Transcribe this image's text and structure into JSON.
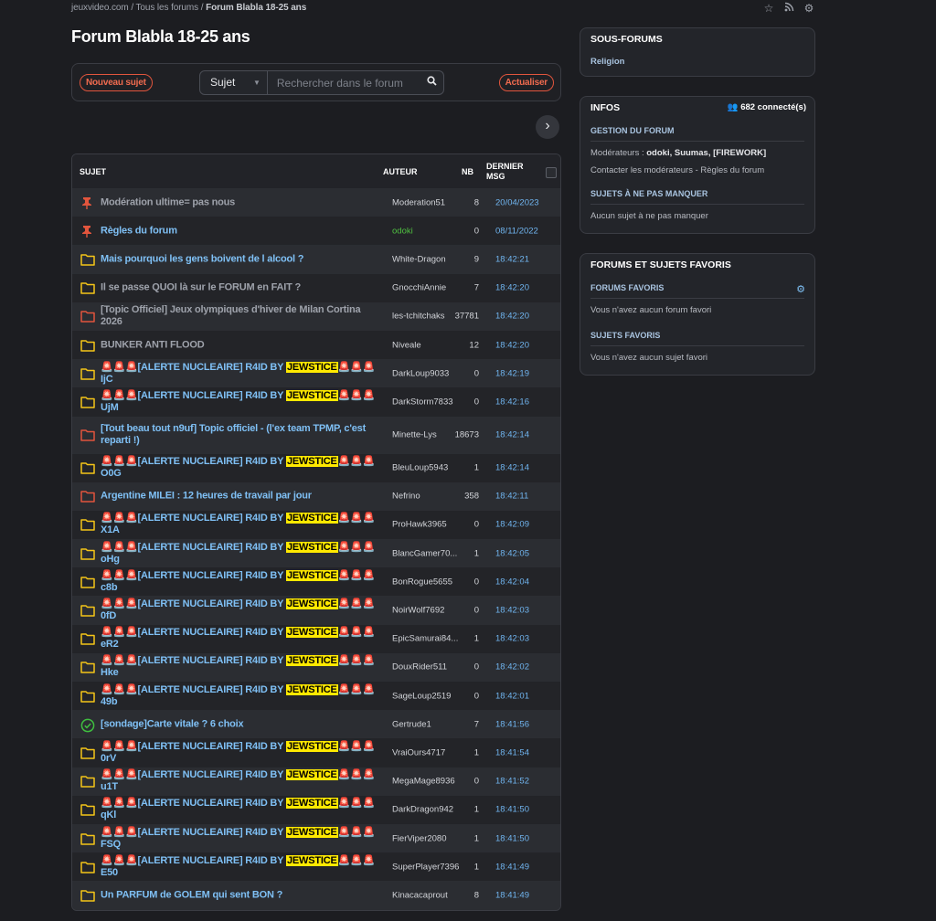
{
  "breadcrumb": {
    "site": "jeuxvideo.com",
    "sep1": "/",
    "all": "Tous les forums",
    "sep2": "/",
    "current": "Forum Blabla 18-25 ans"
  },
  "header": {
    "title": "Forum Blabla 18-25 ans"
  },
  "toolbar": {
    "new_topic": "Nouveau sujet",
    "search_scope": "Sujet",
    "search_placeholder": "Rechercher dans le forum",
    "refresh": "Actualiser"
  },
  "table": {
    "col_subject": "SUJET",
    "col_author": "AUTEUR",
    "col_nb": "NB",
    "col_last_1": "DERNIER",
    "col_last_2": "MSG"
  },
  "topics": [
    {
      "icon": "pin",
      "title": "Modération ultime= pas nous",
      "author": "Moderation51",
      "nb": "8",
      "last": "20/04/2023",
      "dim": true
    },
    {
      "icon": "pin",
      "title": "Règles du forum",
      "author": "odoki",
      "nb": "0",
      "last": "08/11/2022",
      "mod": true
    },
    {
      "icon": "folder-yellow",
      "title": "Mais pourquoi les gens boivent de l alcool ?",
      "author": "White-Dragon",
      "nb": "9",
      "last": "18:42:21"
    },
    {
      "icon": "folder-yellow",
      "title": "Il se passe QUOI là sur le FORUM en FAIT ?",
      "author": "GnocchiAnnie",
      "nb": "7",
      "last": "18:42:20",
      "dim": true
    },
    {
      "icon": "folder-red",
      "title": "[Topic Officiel] Jeux olympiques d'hiver de Milan Cortina 2026",
      "author": "les-tchitchaks",
      "nb": "37781",
      "last": "18:42:20",
      "dim": true
    },
    {
      "icon": "folder-yellow",
      "title": "BUNKER ANTI FLOOD",
      "author": "Niveale",
      "nb": "12",
      "last": "18:42:20",
      "dim": true
    },
    {
      "icon": "folder-yellow",
      "alert": true,
      "pre": "🚨🚨🚨[ALERTE NUCLEAIRE] R4ID BY ",
      "hl": "JEWSTICE",
      "post": "🚨🚨🚨 IjC",
      "author": "DarkLoup9033",
      "nb": "0",
      "last": "18:42:19"
    },
    {
      "icon": "folder-yellow",
      "alert": true,
      "pre": "🚨🚨🚨[ALERTE NUCLEAIRE] R4ID BY ",
      "hl": "JEWSTICE",
      "post": "🚨🚨🚨 UjM",
      "author": "DarkStorm7833",
      "nb": "0",
      "last": "18:42:16"
    },
    {
      "icon": "folder-red",
      "tall": true,
      "title": "[Tout beau tout n9uf] Topic officiel - (l'ex team TPMP, c'est reparti !)",
      "author": "Minette-Lys",
      "nb": "18673",
      "last": "18:42:14"
    },
    {
      "icon": "folder-yellow",
      "alert": true,
      "pre": "🚨🚨🚨[ALERTE NUCLEAIRE] R4ID BY ",
      "hl": "JEWSTICE",
      "post": "🚨🚨🚨 O0G",
      "author": "BleuLoup5943",
      "nb": "1",
      "last": "18:42:14"
    },
    {
      "icon": "folder-red",
      "title": "Argentine MILEI : 12 heures de travail par jour",
      "author": "Nefrino",
      "nb": "358",
      "last": "18:42:11"
    },
    {
      "icon": "folder-yellow",
      "alert": true,
      "pre": "🚨🚨🚨[ALERTE NUCLEAIRE] R4ID BY ",
      "hl": "JEWSTICE",
      "post": "🚨🚨🚨 X1A",
      "author": "ProHawk3965",
      "nb": "0",
      "last": "18:42:09"
    },
    {
      "icon": "folder-yellow",
      "alert": true,
      "pre": "🚨🚨🚨[ALERTE NUCLEAIRE] R4ID BY ",
      "hl": "JEWSTICE",
      "post": "🚨🚨🚨 oHg",
      "author": "BlancGamer70...",
      "nb": "1",
      "last": "18:42:05"
    },
    {
      "icon": "folder-yellow",
      "alert": true,
      "pre": "🚨🚨🚨[ALERTE NUCLEAIRE] R4ID BY ",
      "hl": "JEWSTICE",
      "post": "🚨🚨🚨 c8b",
      "author": "BonRogue5655",
      "nb": "0",
      "last": "18:42:04"
    },
    {
      "icon": "folder-yellow",
      "alert": true,
      "pre": "🚨🚨🚨[ALERTE NUCLEAIRE] R4ID BY ",
      "hl": "JEWSTICE",
      "post": "🚨🚨🚨 0fD",
      "author": "NoirWolf7692",
      "nb": "0",
      "last": "18:42:03"
    },
    {
      "icon": "folder-yellow",
      "alert": true,
      "pre": "🚨🚨🚨[ALERTE NUCLEAIRE] R4ID BY ",
      "hl": "JEWSTICE",
      "post": "🚨🚨🚨 eR2",
      "author": "EpicSamurai84...",
      "nb": "1",
      "last": "18:42:03"
    },
    {
      "icon": "folder-yellow",
      "alert": true,
      "pre": "🚨🚨🚨[ALERTE NUCLEAIRE] R4ID BY ",
      "hl": "JEWSTICE",
      "post": "🚨🚨🚨 Hke",
      "author": "DouxRider511",
      "nb": "0",
      "last": "18:42:02"
    },
    {
      "icon": "folder-yellow",
      "alert": true,
      "pre": "🚨🚨🚨[ALERTE NUCLEAIRE] R4ID BY ",
      "hl": "JEWSTICE",
      "post": "🚨🚨🚨 49b",
      "author": "SageLoup2519",
      "nb": "0",
      "last": "18:42:01"
    },
    {
      "icon": "check",
      "title": "[sondage]Carte vitale ? 6 choix",
      "author": "Gertrude1",
      "nb": "7",
      "last": "18:41:56"
    },
    {
      "icon": "folder-yellow",
      "alert": true,
      "pre": "🚨🚨🚨[ALERTE NUCLEAIRE] R4ID BY ",
      "hl": "JEWSTICE",
      "post": "🚨🚨🚨 0rV",
      "author": "VraiOurs4717",
      "nb": "1",
      "last": "18:41:54"
    },
    {
      "icon": "folder-yellow",
      "alert": true,
      "pre": "🚨🚨🚨[ALERTE NUCLEAIRE] R4ID BY ",
      "hl": "JEWSTICE",
      "post": "🚨🚨🚨 u1T",
      "author": "MegaMage8936",
      "nb": "0",
      "last": "18:41:52"
    },
    {
      "icon": "folder-yellow",
      "alert": true,
      "pre": "🚨🚨🚨[ALERTE NUCLEAIRE] R4ID BY ",
      "hl": "JEWSTICE",
      "post": "🚨🚨🚨 qKl",
      "author": "DarkDragon942",
      "nb": "1",
      "last": "18:41:50"
    },
    {
      "icon": "folder-yellow",
      "alert": true,
      "pre": "🚨🚨🚨[ALERTE NUCLEAIRE] R4ID BY ",
      "hl": "JEWSTICE",
      "post": "🚨🚨🚨 FSQ",
      "author": "FierViper2080",
      "nb": "1",
      "last": "18:41:50"
    },
    {
      "icon": "folder-yellow",
      "alert": true,
      "pre": "🚨🚨🚨[ALERTE NUCLEAIRE] R4ID BY ",
      "hl": "JEWSTICE",
      "post": "🚨🚨🚨 E50",
      "author": "SuperPlayer7396",
      "nb": "1",
      "last": "18:41:49"
    },
    {
      "icon": "folder-yellow",
      "title": "Un PARFUM de GOLEM qui sent BON ?",
      "author": "Kinacacaprout",
      "nb": "8",
      "last": "18:41:49"
    }
  ],
  "sidebar": {
    "subforums": {
      "title": "SOUS-FORUMS",
      "item": "Religion"
    },
    "infos": {
      "title": "INFOS",
      "connected": "682 connecté(s)",
      "management": "GESTION DU FORUM",
      "moderators_label": "Modérateurs : ",
      "moderators": "odoki, Suumas, [FIREWORK]",
      "contact": "Contacter les modérateurs",
      "sep": " - ",
      "rules": "Règles du forum",
      "must_read": "SUJETS À NE PAS MANQUER",
      "must_read_empty": "Aucun sujet à ne pas manquer"
    },
    "favorites": {
      "title": "FORUMS ET SUJETS FAVORIS",
      "forums_title": "FORUMS FAVORIS",
      "forums_empty": "Vous n'avez aucun forum favori",
      "topics_title": "SUJETS FAVORIS",
      "topics_empty": "Vous n'avez aucun sujet favori"
    }
  },
  "colors": {
    "accent_link": "#7fc0f5",
    "folder_yellow": "#f5c518",
    "folder_red": "#e2553d",
    "highlight": "#ffe900",
    "moderator": "#4fbf40"
  }
}
